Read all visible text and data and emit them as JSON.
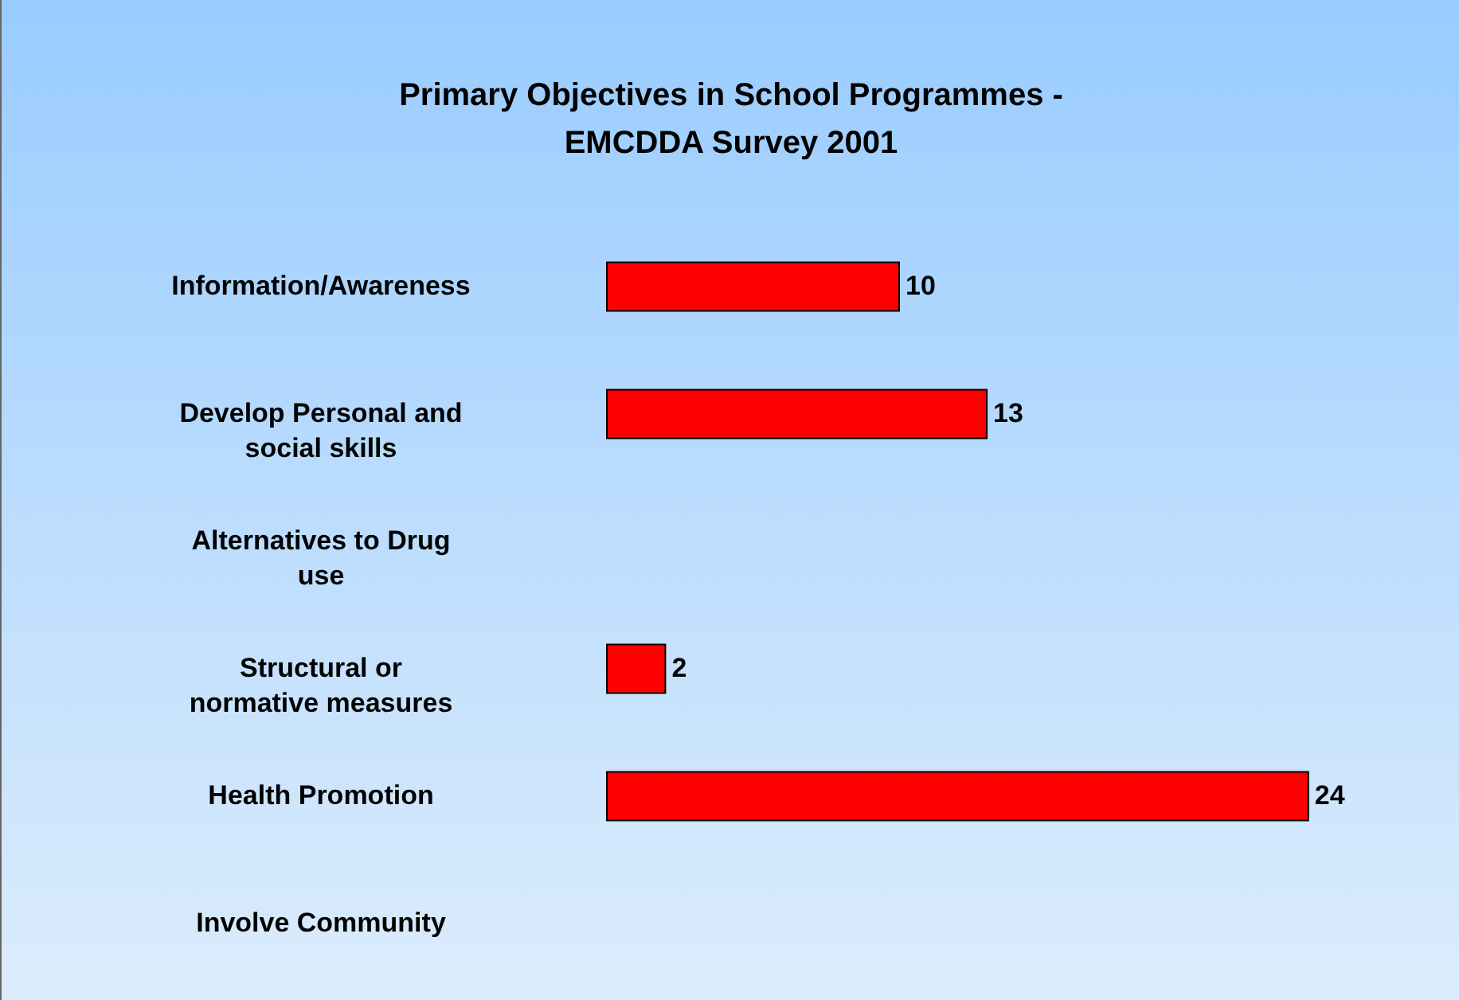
{
  "chart_data": {
    "type": "bar",
    "orientation": "horizontal",
    "title": "Primary Objectives in School Programmes - EMCDDA Survey 2001",
    "categories": [
      "Information/Awareness",
      "Develop Personal and social skills",
      "Alternatives to Drug use",
      "Structural or normative measures",
      "Health Promotion",
      "Involve Community"
    ],
    "values": [
      10,
      13,
      null,
      2,
      24,
      null
    ],
    "color": "#ff0000",
    "data_labels": true
  }
}
